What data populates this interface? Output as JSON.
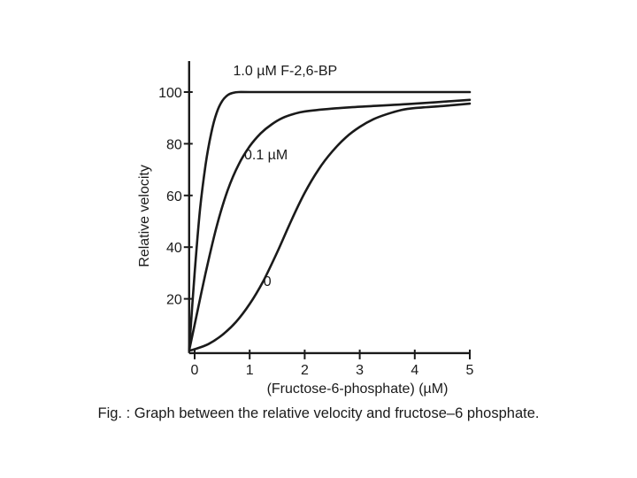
{
  "chart_data": {
    "type": "line",
    "title": "",
    "xlabel": "(Fructose-6-phosphate) (µM)",
    "ylabel": "Relative velocity",
    "xlim": [
      -0.1,
      5.0
    ],
    "ylim": [
      -1,
      112
    ],
    "x_ticks": [
      0,
      1,
      2,
      3,
      4,
      5
    ],
    "y_ticks": [
      20,
      40,
      60,
      80,
      100
    ],
    "grid": false,
    "series": [
      {
        "name": "1.0 µM F-2,6-BP",
        "label_anchor": [
          0.7,
          106.5
        ],
        "points": [
          [
            -0.1,
            0
          ],
          [
            0.0,
            30
          ],
          [
            0.1,
            55
          ],
          [
            0.2,
            72
          ],
          [
            0.3,
            84
          ],
          [
            0.4,
            92
          ],
          [
            0.5,
            96.5
          ],
          [
            0.6,
            98.8
          ],
          [
            0.7,
            99.7
          ],
          [
            0.8,
            100
          ],
          [
            1.0,
            100
          ],
          [
            2.0,
            100
          ],
          [
            3.0,
            100
          ],
          [
            4.0,
            100
          ],
          [
            5.0,
            100
          ]
        ]
      },
      {
        "name": "0.1 µM",
        "label_anchor": [
          0.9,
          74
        ],
        "points": [
          [
            -0.1,
            0
          ],
          [
            0.0,
            10
          ],
          [
            0.2,
            30
          ],
          [
            0.4,
            48
          ],
          [
            0.6,
            62
          ],
          [
            0.8,
            72
          ],
          [
            1.0,
            79
          ],
          [
            1.2,
            84
          ],
          [
            1.4,
            87.5
          ],
          [
            1.6,
            90
          ],
          [
            1.8,
            91.5
          ],
          [
            2.0,
            92.5
          ],
          [
            2.5,
            93.6
          ],
          [
            3.0,
            94.3
          ],
          [
            4.0,
            95.5
          ],
          [
            5.0,
            97
          ]
        ]
      },
      {
        "name": "0",
        "label_anchor": [
          1.25,
          25
        ],
        "points": [
          [
            -0.1,
            0
          ],
          [
            0.0,
            0.5
          ],
          [
            0.25,
            2.5
          ],
          [
            0.5,
            6
          ],
          [
            0.75,
            11
          ],
          [
            1.0,
            18
          ],
          [
            1.25,
            27
          ],
          [
            1.5,
            38
          ],
          [
            1.75,
            50
          ],
          [
            2.0,
            61
          ],
          [
            2.25,
            70
          ],
          [
            2.5,
            77
          ],
          [
            2.75,
            82.5
          ],
          [
            3.0,
            86.5
          ],
          [
            3.25,
            89.5
          ],
          [
            3.5,
            91.5
          ],
          [
            3.75,
            93
          ],
          [
            4.0,
            93.8
          ],
          [
            4.5,
            94.6
          ],
          [
            5.0,
            95.5
          ]
        ]
      }
    ]
  },
  "caption": "Fig. : Graph between the relative velocity and fructose–6 phosphate."
}
